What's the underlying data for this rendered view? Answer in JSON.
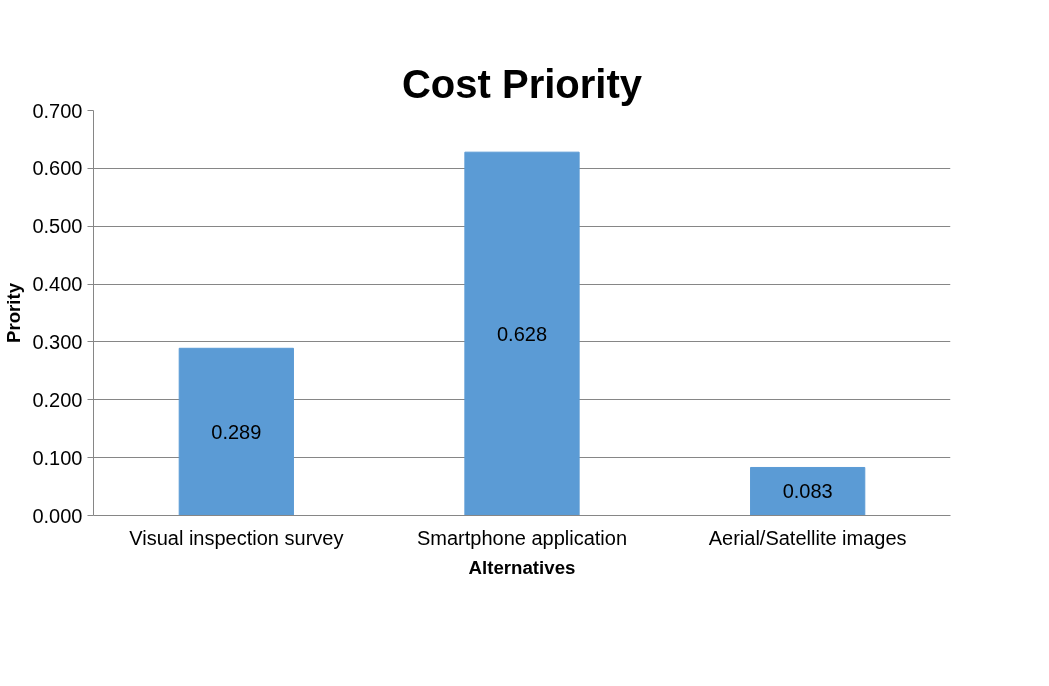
{
  "chart_data": {
    "type": "bar",
    "title": "Cost Priority",
    "xlabel": "Alternatives",
    "ylabel": "Prority",
    "categories": [
      "Visual inspection survey",
      "Smartphone application",
      "Aerial/Satellite images"
    ],
    "values": [
      0.289,
      0.628,
      0.083
    ],
    "color": "#5b9bd5",
    "ylim": [
      0,
      0.7
    ],
    "yticks": [
      {
        "value": 0,
        "label": "0.000"
      },
      {
        "value": 0.1,
        "label": "0.100"
      },
      {
        "value": 0.2,
        "label": "0.200"
      },
      {
        "value": 0.3,
        "label": "0.300"
      },
      {
        "value": 0.4,
        "label": "0.400"
      },
      {
        "value": 0.5,
        "label": "0.500"
      },
      {
        "value": 0.6,
        "label": "0.600"
      },
      {
        "value": 0.7,
        "label": "0.700"
      }
    ],
    "grid": "y",
    "data_labels": true
  }
}
